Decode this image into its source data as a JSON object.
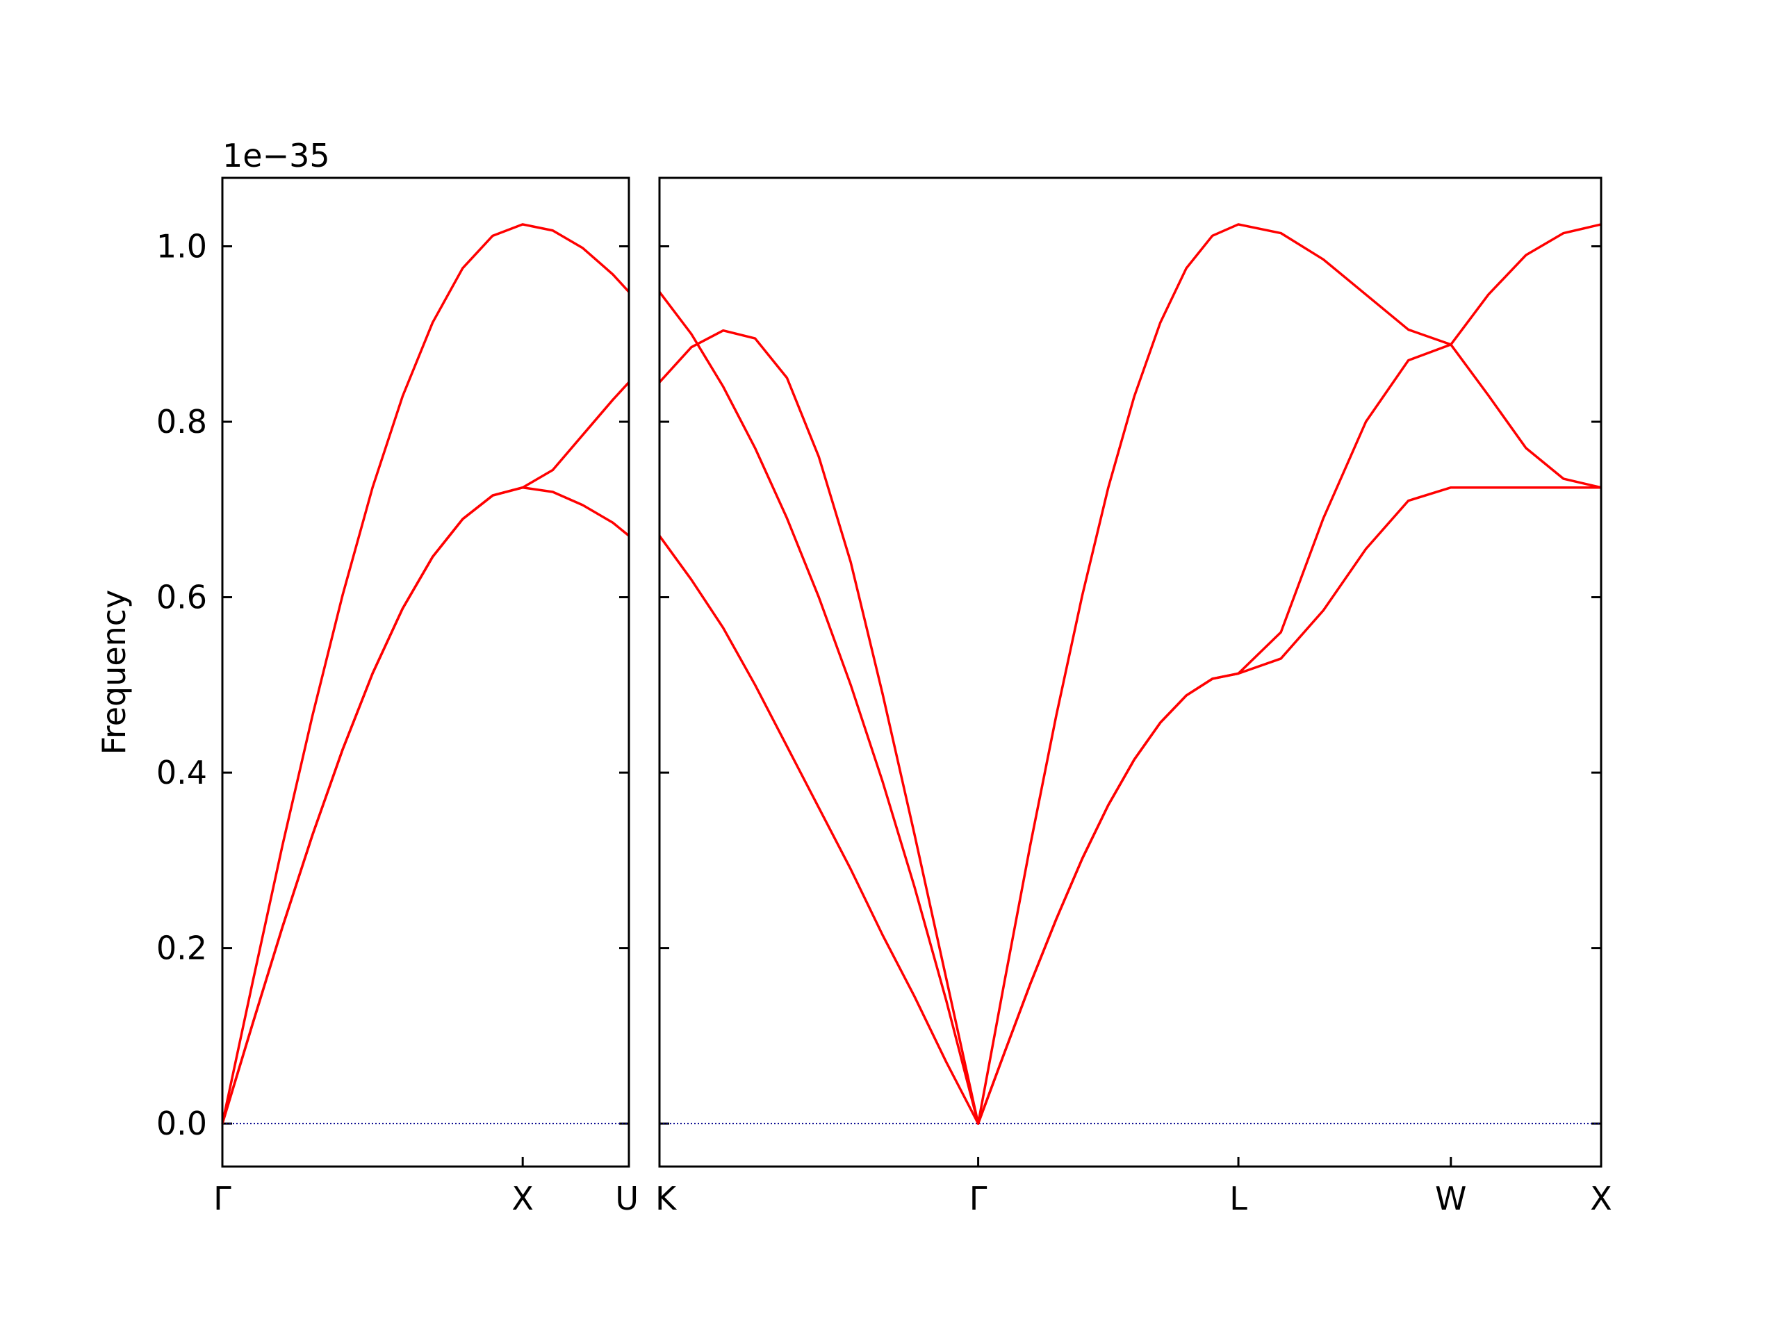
{
  "chart_data": [
    {
      "type": "line",
      "x": [
        0,
        0.1,
        0.2,
        0.3,
        0.4,
        0.5,
        0.6,
        0.7,
        0.8,
        0.9,
        1,
        1.1,
        1.2,
        1.3,
        1.3536
      ],
      "series": [
        {
          "color": "#ff0000",
          "values": [
            0,
            0.113,
            0.224,
            0.329,
            0.426,
            0.513,
            0.587,
            0.646,
            0.689,
            0.716,
            0.725,
            0.72,
            0.705,
            0.685,
            0.67
          ]
        },
        {
          "color": "#ff0000",
          "values": [
            0,
            0.113,
            0.224,
            0.329,
            0.426,
            0.513,
            0.587,
            0.646,
            0.689,
            0.716,
            0.725,
            0.745,
            0.785,
            0.825,
            0.845
          ]
        },
        {
          "color": "#ff0000",
          "values": [
            0,
            0.16,
            0.317,
            0.465,
            0.602,
            0.725,
            0.829,
            0.913,
            0.975,
            1.012,
            1.025,
            1.018,
            0.998,
            0.968,
            0.948
          ]
        }
      ],
      "xlim": [
        0,
        1.3536
      ],
      "xticks": [
        {
          "value": 0,
          "label": "Γ"
        },
        {
          "value": 1,
          "label": "X"
        },
        {
          "value": 1.3536,
          "label": "U"
        }
      ],
      "ylim": [
        -0.049,
        1.078
      ],
      "yticks": [
        {
          "value": 0,
          "label": "0.0"
        },
        0.2,
        0.4,
        0.6,
        0.8,
        {
          "value": 1,
          "label": "1.0"
        }
      ],
      "ylabel": "Frequency",
      "offset_label": "1e−35",
      "hline": 0,
      "hline_color": "#00008b"
    },
    {
      "type": "line",
      "x": [
        1.3536,
        1.4597,
        1.5657,
        1.6718,
        1.7779,
        1.8839,
        1.99,
        2.096,
        2.2021,
        2.3082,
        2.4142,
        2.5008,
        2.5874,
        2.674,
        2.7606,
        2.8472,
        2.9338,
        3.0204,
        3.107,
        3.1936,
        3.2802,
        3.4216,
        3.563,
        3.7045,
        3.8459,
        3.9873,
        4.1123,
        4.2373,
        4.3623,
        4.4873
      ],
      "series": [
        {
          "color": "#ff0000",
          "values": [
            0.67,
            0.62,
            0.565,
            0.5,
            0.43,
            0.36,
            0.29,
            0.215,
            0.145,
            0.07,
            0,
            0.08,
            0.159,
            0.233,
            0.302,
            0.363,
            0.415,
            0.457,
            0.488,
            0.507,
            0.513,
            0.53,
            0.585,
            0.655,
            0.71,
            0.725,
            0.725,
            0.725,
            0.725,
            0.725
          ]
        },
        {
          "color": "#ff0000",
          "values": [
            0.948,
            0.9,
            0.84,
            0.77,
            0.69,
            0.6,
            0.5,
            0.39,
            0.27,
            0.14,
            0,
            0.08,
            0.159,
            0.233,
            0.302,
            0.363,
            0.415,
            0.457,
            0.488,
            0.507,
            0.513,
            0.56,
            0.69,
            0.8,
            0.87,
            0.888,
            0.83,
            0.77,
            0.735,
            0.725
          ]
        },
        {
          "color": "#ff0000",
          "values": [
            0.845,
            0.885,
            0.904,
            0.895,
            0.85,
            0.76,
            0.64,
            0.49,
            0.33,
            0.165,
            0,
            0.16,
            0.317,
            0.465,
            0.602,
            0.725,
            0.829,
            0.913,
            0.975,
            1.012,
            1.025,
            1.015,
            0.985,
            0.945,
            0.905,
            0.888,
            0.945,
            0.99,
            1.015,
            1.025
          ]
        }
      ],
      "xlim": [
        1.3536,
        4.4873
      ],
      "xticks": [
        {
          "value": 1.3536,
          "label": "K"
        },
        {
          "value": 2.4142,
          "label": "Γ"
        },
        {
          "value": 3.2802,
          "label": "L"
        },
        {
          "value": 3.9873,
          "label": "W"
        },
        {
          "value": 4.4873,
          "label": "X"
        }
      ],
      "ylim": [
        -0.049,
        1.078
      ],
      "yticks": [
        0,
        0.2,
        0.4,
        0.6,
        0.8,
        1
      ],
      "hline": 0,
      "hline_color": "#00008b"
    }
  ]
}
